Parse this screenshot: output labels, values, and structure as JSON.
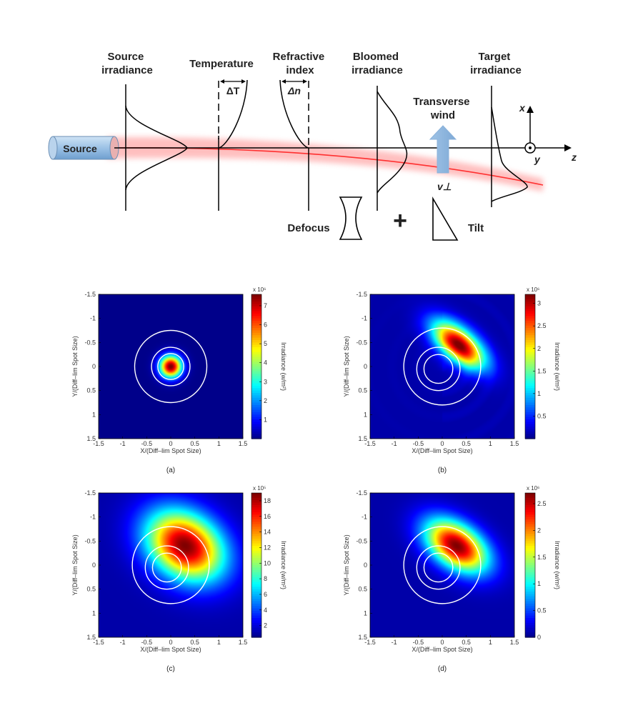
{
  "diagram": {
    "source_label": "Source",
    "labels": {
      "source_irradiance": [
        "Source",
        "irradiance"
      ],
      "temperature": [
        "Temperature"
      ],
      "refractive_index": [
        "Refractive",
        "index"
      ],
      "bloomed_irradiance": [
        "Bloomed",
        "irradiance"
      ],
      "target_irradiance": [
        "Target",
        "irradiance"
      ],
      "transverse_wind": [
        "Transverse",
        "wind"
      ]
    },
    "delta_t": "ΔT",
    "delta_n": "Δn",
    "wind_symbol": "v⊥",
    "defocus": "Defocus",
    "plus": "+",
    "tilt": "Tilt",
    "axis_x": "x",
    "axis_y": "y",
    "axis_z": "z"
  },
  "plots": [
    {
      "caption": "(a)",
      "xlabel": "X/(Diff–lim Spot Size)",
      "ylabel": "Y/(Diff–lim Spot Size)",
      "cbar_label": "Irradiance (w/m²)",
      "cbar_exp": "x 10⁶",
      "cbar_ticks": [
        "1",
        "2",
        "3",
        "4",
        "5",
        "6",
        "7"
      ],
      "cbar_range": [
        0,
        7.6
      ],
      "peak_value": 7.6,
      "blob": {
        "cx": 0.0,
        "cy": 0.0,
        "sx": 0.16,
        "sy": 0.16,
        "rot": 0
      },
      "circles": [
        0.27,
        0.4,
        0.75
      ]
    },
    {
      "caption": "(b)",
      "xlabel": "X/(Diff–lim Spot Size)",
      "ylabel": "Y/(Diff–lim Spot Size)",
      "cbar_label": "Irradiance (w/m²)",
      "cbar_exp": "x 10⁶",
      "cbar_ticks": [
        "0.5",
        "1",
        "1.5",
        "2",
        "2.5",
        "3"
      ],
      "cbar_range": [
        0,
        3.2
      ],
      "peak_value": 3.2,
      "blob": {
        "cx": 0.35,
        "cy": -0.45,
        "sx": 0.45,
        "sy": 0.22,
        "rot": 40
      },
      "circles": [
        0.3,
        0.45,
        0.8
      ],
      "ripple": true
    },
    {
      "caption": "(c)",
      "xlabel": "X/(Diff–lim Spot Size)",
      "ylabel": "Y/(Diff–lim Spot Size)",
      "cbar_label": "Irradiance (w/m²)",
      "cbar_exp": "x 10⁵",
      "cbar_ticks": [
        "2",
        "4",
        "6",
        "8",
        "10",
        "12",
        "14",
        "16",
        "18"
      ],
      "cbar_range": [
        0.5,
        19
      ],
      "peak_value": 19,
      "blob": {
        "cx": 0.3,
        "cy": -0.4,
        "sx": 0.6,
        "sy": 0.45,
        "rot": 35
      },
      "circles": [
        0.3,
        0.45,
        0.8
      ]
    },
    {
      "caption": "(d)",
      "xlabel": "X/(Diff–lim Spot Size)",
      "ylabel": "Y/(Diff–lim Spot Size)",
      "cbar_label": "Irradiance (w/m²)",
      "cbar_exp": "x 10⁶",
      "cbar_ticks": [
        "0",
        "0.5",
        "1",
        "1.5",
        "2",
        "2.5"
      ],
      "cbar_range": [
        0,
        2.7
      ],
      "peak_value": 2.7,
      "blob": {
        "cx": 0.3,
        "cy": -0.4,
        "sx": 0.5,
        "sy": 0.3,
        "rot": 35
      },
      "circles": [
        0.3,
        0.45,
        0.8
      ]
    }
  ],
  "axis_ticks": [
    "-1.5",
    "-1",
    "-0.5",
    "0",
    "0.5",
    "1",
    "1.5"
  ]
}
